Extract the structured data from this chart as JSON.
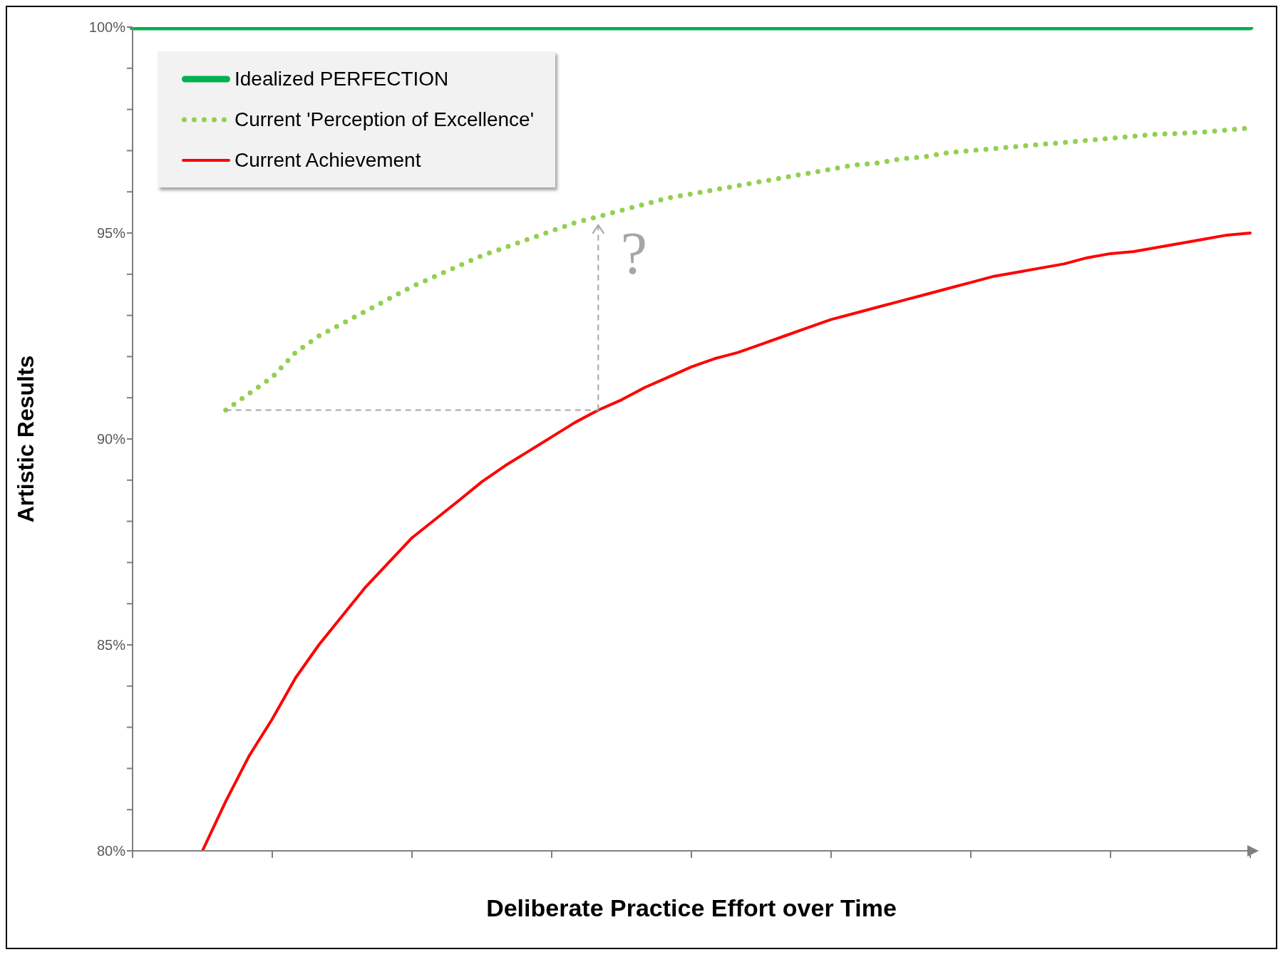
{
  "chart_data": {
    "type": "line",
    "xlabel": "Deliberate Practice Effort over Time",
    "ylabel": "Artistic Results",
    "categories": [
      null,
      null,
      null,
      null,
      null,
      null,
      null,
      null,
      null,
      null,
      null,
      null,
      null,
      null,
      null,
      null,
      null,
      null,
      null,
      null,
      null,
      null,
      null,
      null,
      null,
      null,
      null,
      null,
      null,
      null,
      null,
      null,
      null,
      null,
      null,
      null,
      null,
      null,
      null,
      null,
      null,
      null,
      null,
      null,
      null,
      null,
      null,
      null,
      null
    ],
    "ylim": [
      80,
      100
    ],
    "yticks": [
      {
        "value": 80,
        "label": "80%"
      },
      {
        "value": 81,
        "label": null
      },
      {
        "value": 82,
        "label": null
      },
      {
        "value": 83,
        "label": null
      },
      {
        "value": 84,
        "label": null
      },
      {
        "value": 85,
        "label": "85%"
      },
      {
        "value": 86,
        "label": null
      },
      {
        "value": 87,
        "label": null
      },
      {
        "value": 88,
        "label": null
      },
      {
        "value": 89,
        "label": null
      },
      {
        "value": 90,
        "label": "90%"
      },
      {
        "value": 91,
        "label": null
      },
      {
        "value": 92,
        "label": null
      },
      {
        "value": 93,
        "label": null
      },
      {
        "value": 94,
        "label": null
      },
      {
        "value": 95,
        "label": "95%"
      },
      {
        "value": 96,
        "label": null
      },
      {
        "value": 97,
        "label": null
      },
      {
        "value": 98,
        "label": null
      },
      {
        "value": 99,
        "label": null
      },
      {
        "value": 100,
        "label": "100%"
      }
    ],
    "legend": "top left",
    "marker": "none",
    "annotations": [
      "?"
    ],
    "series": [
      {
        "name": "Idealized PERFECTION",
        "color": "#00b050",
        "line_style": "solid",
        "values": [
          100,
          100,
          100,
          100,
          100,
          100,
          100,
          100,
          100,
          100,
          100,
          100,
          100,
          100,
          100,
          100,
          100,
          100,
          100,
          100,
          100,
          100,
          100,
          100,
          100,
          100,
          100,
          100,
          100,
          100,
          100,
          100,
          100,
          100,
          100,
          100,
          100,
          100,
          100,
          100,
          100,
          100,
          100,
          100,
          100,
          100,
          100,
          100,
          100
        ]
      },
      {
        "name": "Current 'Perception of Excellence'",
        "color": "#92d050",
        "line_style": "dotted",
        "values": [
          null,
          null,
          null,
          null,
          90.7,
          91.1,
          91.5,
          92.1,
          92.5,
          92.8,
          93.1,
          93.4,
          93.7,
          93.95,
          94.2,
          94.45,
          94.65,
          94.85,
          95.05,
          95.25,
          95.4,
          95.55,
          95.7,
          95.85,
          95.95,
          96.05,
          96.15,
          96.25,
          96.35,
          96.45,
          96.55,
          96.65,
          96.7,
          96.8,
          96.85,
          96.95,
          97.0,
          97.05,
          97.1,
          97.15,
          97.2,
          97.25,
          97.3,
          97.35,
          97.4,
          97.42,
          97.45,
          97.5,
          97.55
        ]
      },
      {
        "name": "Current Achievement",
        "color": "#ff0000",
        "line_style": "solid",
        "values": [
          null,
          null,
          null,
          80.0,
          81.2,
          82.3,
          83.2,
          84.2,
          85.0,
          85.7,
          86.4,
          87.0,
          87.6,
          88.05,
          88.5,
          88.96,
          89.35,
          89.7,
          90.05,
          90.4,
          90.7,
          90.95,
          91.25,
          91.5,
          91.75,
          91.95,
          92.1,
          92.3,
          92.5,
          92.7,
          92.9,
          93.05,
          93.2,
          93.35,
          93.5,
          93.65,
          93.8,
          93.95,
          94.05,
          94.15,
          94.25,
          94.4,
          94.5,
          94.55,
          94.65,
          94.75,
          94.85,
          94.95,
          95.0
        ]
      }
    ]
  }
}
